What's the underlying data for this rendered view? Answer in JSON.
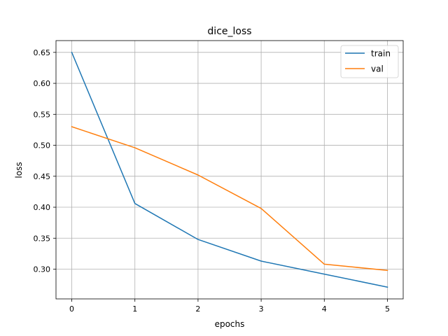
{
  "chart_data": {
    "type": "line",
    "title": "dice_loss",
    "xlabel": "epochs",
    "ylabel": "loss",
    "x": [
      0,
      1,
      2,
      3,
      4,
      5
    ],
    "xticks": [
      "0",
      "1",
      "2",
      "3",
      "4",
      "5"
    ],
    "yticks": [
      "0.30",
      "0.35",
      "0.40",
      "0.45",
      "0.50",
      "0.55",
      "0.60",
      "0.65"
    ],
    "xlim": [
      -0.25,
      5.25
    ],
    "ylim": [
      0.252,
      0.669
    ],
    "grid": true,
    "legend_placement": "top-right",
    "series": [
      {
        "name": "train",
        "color": "#1f77b4",
        "values": [
          0.65,
          0.406,
          0.348,
          0.313,
          0.292,
          0.271
        ]
      },
      {
        "name": "val",
        "color": "#ff7f0e",
        "values": [
          0.53,
          0.496,
          0.452,
          0.398,
          0.308,
          0.298
        ]
      }
    ]
  }
}
